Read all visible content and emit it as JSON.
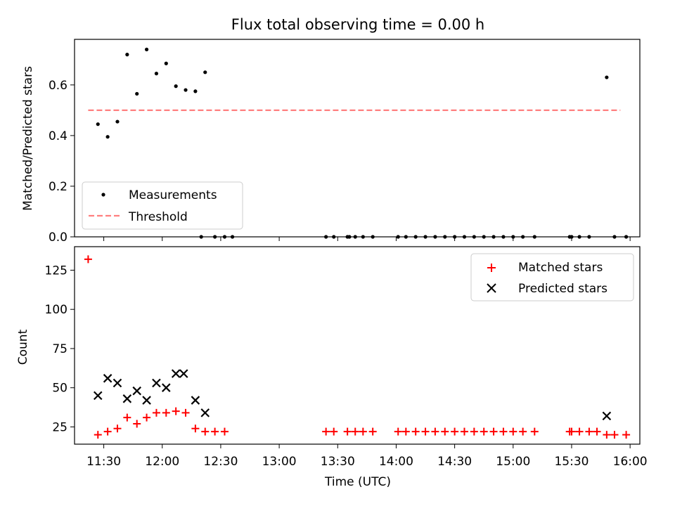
{
  "chart_data": [
    {
      "type": "scatter",
      "title": "Flux total observing time = 0.00 h",
      "ylabel": "Matched/Predicted stars",
      "xlim": [
        675,
        965
      ],
      "ylim": [
        0,
        0.78
      ],
      "yticks": [
        0.0,
        0.2,
        0.4,
        0.6
      ],
      "ytick_labels": [
        "0.0",
        "0.2",
        "0.4",
        "0.6"
      ],
      "xtick_minutes": [
        690,
        720,
        750,
        780,
        810,
        840,
        870,
        900,
        930,
        960
      ],
      "legend": {
        "position": "lower-left"
      },
      "series": [
        {
          "name": "Measurements",
          "kind": "scatter",
          "color": "#000000",
          "x": [
            687,
            692,
            697,
            702,
            707,
            712,
            717,
            722,
            727,
            732,
            737,
            742,
            747,
            752,
            740,
            756,
            804,
            808,
            815,
            816,
            819,
            823,
            828,
            841,
            845,
            850,
            855,
            860,
            865,
            870,
            875,
            880,
            885,
            890,
            895,
            900,
            905,
            911,
            929,
            930,
            934,
            939,
            948,
            952,
            958
          ],
          "y": [
            0.445,
            0.395,
            0.455,
            0.72,
            0.565,
            0.74,
            0.645,
            0.685,
            0.595,
            0.58,
            0.575,
            0.65,
            0.0,
            0.0,
            0.0,
            0.0,
            0.0,
            0.0,
            0.0,
            0.0,
            0.0,
            0.0,
            0.0,
            0.0,
            0.0,
            0.0,
            0.0,
            0.0,
            0.0,
            0.0,
            0.0,
            0.0,
            0.0,
            0.0,
            0.0,
            0.0,
            0.0,
            0.0,
            0.0,
            0.0,
            0.0,
            0.0,
            0.63,
            0.0,
            0.0
          ]
        },
        {
          "name": "Threshold",
          "kind": "line",
          "color": "#ff7f7f",
          "x": [
            675,
            965
          ],
          "y": [
            0.5,
            0.5
          ]
        }
      ]
    },
    {
      "type": "scatter",
      "xlabel": "Time (UTC)",
      "ylabel": "Count",
      "xlim": [
        675,
        965
      ],
      "ylim": [
        14,
        140
      ],
      "yticks": [
        25,
        50,
        75,
        100,
        125
      ],
      "ytick_labels": [
        "25",
        "50",
        "75",
        "100",
        "125"
      ],
      "xtick_minutes": [
        690,
        720,
        750,
        780,
        810,
        840,
        870,
        900,
        930,
        960
      ],
      "xtick_labels": [
        "11:30",
        "12:00",
        "12:30",
        "13:00",
        "13:30",
        "14:00",
        "14:30",
        "15:00",
        "15:30",
        "16:00"
      ],
      "legend": {
        "position": "top-right"
      },
      "series": [
        {
          "name": "Matched stars",
          "marker": "plus",
          "color": "#ff0000",
          "x": [
            682,
            687,
            692,
            697,
            702,
            707,
            712,
            717,
            722,
            727,
            732,
            737,
            742,
            747,
            752,
            804,
            808,
            815,
            819,
            823,
            828,
            841,
            845,
            850,
            855,
            860,
            865,
            870,
            875,
            880,
            885,
            890,
            895,
            900,
            905,
            911,
            929,
            930,
            934,
            939,
            943,
            948,
            952,
            958
          ],
          "y": [
            132,
            20,
            22,
            24,
            31,
            27,
            31,
            34,
            34,
            35,
            34,
            24,
            22,
            22,
            22,
            22,
            22,
            22,
            22,
            22,
            22,
            22,
            22,
            22,
            22,
            22,
            22,
            22,
            22,
            22,
            22,
            22,
            22,
            22,
            22,
            22,
            22,
            22,
            22,
            22,
            22,
            20,
            20,
            20
          ]
        },
        {
          "name": "Predicted stars",
          "marker": "x",
          "color": "#000000",
          "x": [
            687,
            692,
            697,
            702,
            707,
            712,
            717,
            722,
            727,
            731,
            737,
            742,
            948
          ],
          "y": [
            45,
            56,
            53,
            43,
            48,
            42,
            53,
            50,
            59,
            59,
            42,
            34,
            32
          ]
        }
      ]
    }
  ]
}
